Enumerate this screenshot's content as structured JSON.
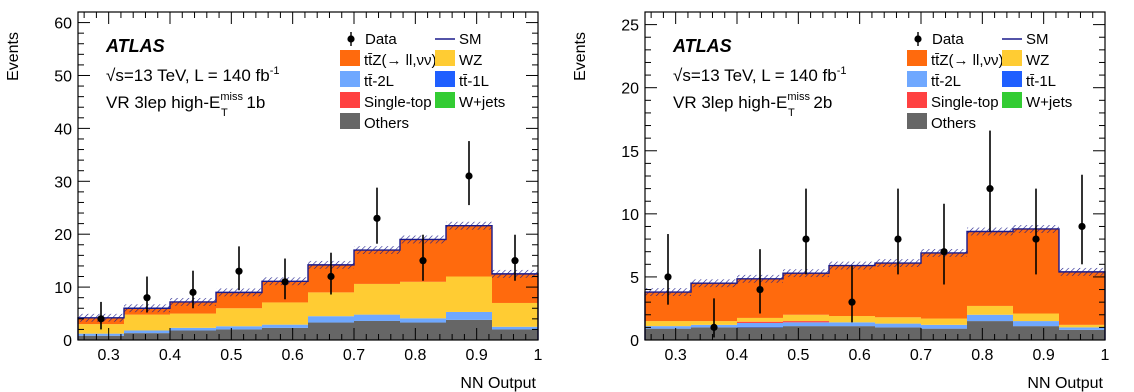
{
  "chart_data": [
    {
      "type": "bar",
      "stacked": true,
      "experiment": "ATLAS",
      "energy_line": "√s=13 TeV, L = 140 fb",
      "lumi_exponent": "-1",
      "region_prefix": "VR 3lep high-E",
      "region_sup": "miss",
      "region_sub": "T",
      "region_suffix": " 1b",
      "ylabel": "Events",
      "xlabel": "NN Output",
      "xlim": [
        0.25,
        1.0
      ],
      "ylim": [
        0,
        62
      ],
      "xticks": [
        "0.3",
        "0.4",
        "0.5",
        "0.6",
        "0.7",
        "0.8",
        "0.9",
        "1"
      ],
      "yticks": [
        "0",
        "10",
        "20",
        "30",
        "40",
        "50",
        "60"
      ],
      "bin_edges": [
        0.25,
        0.325,
        0.4,
        0.475,
        0.55,
        0.625,
        0.7,
        0.775,
        0.85,
        0.925,
        1.0
      ],
      "series": [
        {
          "name": "Others",
          "color": "#666666",
          "values": [
            0.8,
            1.3,
            1.8,
            2.0,
            2.3,
            3.3,
            3.6,
            3.3,
            3.8,
            2.0
          ]
        },
        {
          "name": "tt̄-1L",
          "color": "#1f5fff",
          "values": [
            0,
            0,
            0,
            0,
            0,
            0,
            0,
            0,
            0,
            0
          ]
        },
        {
          "name": "tt̄-2L",
          "color": "#6fa8ff",
          "values": [
            0.4,
            0.5,
            0.5,
            0.6,
            0.6,
            1.2,
            1.2,
            0.8,
            1.5,
            0.5
          ]
        },
        {
          "name": "Single-top",
          "color": "#ff4141",
          "values": [
            0,
            0,
            0,
            0,
            0,
            0,
            0,
            0,
            0,
            0
          ]
        },
        {
          "name": "W+jets",
          "color": "#33cc33",
          "values": [
            0,
            0,
            0,
            0,
            0,
            0,
            0,
            0,
            0,
            0
          ]
        },
        {
          "name": "WZ",
          "color": "#ffcc33",
          "values": [
            1.8,
            3.0,
            2.7,
            3.4,
            4.2,
            4.5,
            5.8,
            6.9,
            6.7,
            4.5
          ]
        },
        {
          "name": "tt̄Z(→ ll,νν)",
          "color": "#ff6a0d",
          "values": [
            1.2,
            1.2,
            2.2,
            3.0,
            4.0,
            5.2,
            6.4,
            8.0,
            9.6,
            5.5
          ]
        }
      ],
      "sm_total": [
        4.2,
        6.0,
        7.2,
        9.0,
        11.1,
        14.2,
        17.0,
        19.0,
        21.6,
        12.5
      ],
      "data_points": [
        {
          "x": 0.2875,
          "y": 4,
          "err_lo": 2.0,
          "err_hi": 3.2
        },
        {
          "x": 0.3625,
          "y": 8,
          "err_lo": 2.8,
          "err_hi": 4.0
        },
        {
          "x": 0.4375,
          "y": 9,
          "err_lo": 3.0,
          "err_hi": 4.1
        },
        {
          "x": 0.5125,
          "y": 13,
          "err_lo": 3.6,
          "err_hi": 4.7
        },
        {
          "x": 0.5875,
          "y": 11,
          "err_lo": 3.3,
          "err_hi": 4.4
        },
        {
          "x": 0.6625,
          "y": 12,
          "err_lo": 3.4,
          "err_hi": 4.5
        },
        {
          "x": 0.7375,
          "y": 23,
          "err_lo": 4.8,
          "err_hi": 5.8
        },
        {
          "x": 0.8125,
          "y": 15,
          "err_lo": 3.8,
          "err_hi": 4.9
        },
        {
          "x": 0.8875,
          "y": 31,
          "err_lo": 5.5,
          "err_hi": 6.6
        },
        {
          "x": 0.9625,
          "y": 15,
          "err_lo": 3.8,
          "err_hi": 4.9
        }
      ],
      "legend_data": "Data",
      "legend_sm": "SM",
      "legend_placement": "top-right"
    },
    {
      "type": "bar",
      "stacked": true,
      "experiment": "ATLAS",
      "energy_line": "√s=13 TeV, L = 140 fb",
      "lumi_exponent": "-1",
      "region_prefix": "VR 3lep high-E",
      "region_sup": "miss",
      "region_sub": "T",
      "region_suffix": " 2b",
      "ylabel": "Events",
      "xlabel": "NN Output",
      "xlim": [
        0.25,
        1.0
      ],
      "ylim": [
        0,
        26
      ],
      "xticks": [
        "0.3",
        "0.4",
        "0.5",
        "0.6",
        "0.7",
        "0.8",
        "0.9",
        "1"
      ],
      "yticks": [
        "0",
        "5",
        "10",
        "15",
        "20",
        "25"
      ],
      "bin_edges": [
        0.25,
        0.325,
        0.4,
        0.475,
        0.55,
        0.625,
        0.7,
        0.775,
        0.85,
        0.925,
        1.0
      ],
      "series": [
        {
          "name": "Others",
          "color": "#666666",
          "values": [
            0.9,
            1.0,
            1.0,
            1.1,
            1.1,
            1.0,
            0.9,
            1.5,
            1.1,
            0.8
          ]
        },
        {
          "name": "tt̄-1L",
          "color": "#1f5fff",
          "values": [
            0,
            0,
            0.05,
            0,
            0,
            0,
            0,
            0,
            0,
            0
          ]
        },
        {
          "name": "tt̄-2L",
          "color": "#6fa8ff",
          "values": [
            0.2,
            0.2,
            0.3,
            0.3,
            0.3,
            0.3,
            0.3,
            0.5,
            0.4,
            0.2
          ]
        },
        {
          "name": "Single-top",
          "color": "#ff4141",
          "values": [
            0,
            0,
            0.1,
            0.1,
            0,
            0,
            0,
            0,
            0,
            0
          ]
        },
        {
          "name": "W+jets",
          "color": "#33cc33",
          "values": [
            0,
            0,
            0,
            0,
            0,
            0,
            0,
            0,
            0,
            0
          ]
        },
        {
          "name": "WZ",
          "color": "#ffcc33",
          "values": [
            0.4,
            0.3,
            0.3,
            0.5,
            0.5,
            0.5,
            0.5,
            0.7,
            0.6,
            0.2
          ]
        },
        {
          "name": "tt̄Z(→ ll,νν)",
          "color": "#ff6a0d",
          "values": [
            2.3,
            3.0,
            3.1,
            3.3,
            4.0,
            4.3,
            5.2,
            5.9,
            6.7,
            4.2
          ]
        }
      ],
      "sm_total": [
        3.8,
        4.5,
        4.85,
        5.3,
        5.9,
        6.1,
        6.9,
        8.6,
        8.8,
        5.4
      ],
      "data_points": [
        {
          "x": 0.2875,
          "y": 5,
          "err_lo": 2.2,
          "err_hi": 3.4
        },
        {
          "x": 0.3625,
          "y": 1,
          "err_lo": 0.8,
          "err_hi": 2.3
        },
        {
          "x": 0.4375,
          "y": 4,
          "err_lo": 1.9,
          "err_hi": 3.2
        },
        {
          "x": 0.5125,
          "y": 8,
          "err_lo": 2.8,
          "err_hi": 4.0
        },
        {
          "x": 0.5875,
          "y": 3,
          "err_lo": 1.6,
          "err_hi": 2.9
        },
        {
          "x": 0.6625,
          "y": 8,
          "err_lo": 2.8,
          "err_hi": 4.0
        },
        {
          "x": 0.7375,
          "y": 7,
          "err_lo": 2.6,
          "err_hi": 3.8
        },
        {
          "x": 0.8125,
          "y": 12,
          "err_lo": 3.4,
          "err_hi": 4.6
        },
        {
          "x": 0.8875,
          "y": 8,
          "err_lo": 2.8,
          "err_hi": 4.0
        },
        {
          "x": 0.9625,
          "y": 9,
          "err_lo": 3.0,
          "err_hi": 4.1
        }
      ],
      "legend_data": "Data",
      "legend_sm": "SM",
      "legend_placement": "top-right"
    }
  ]
}
